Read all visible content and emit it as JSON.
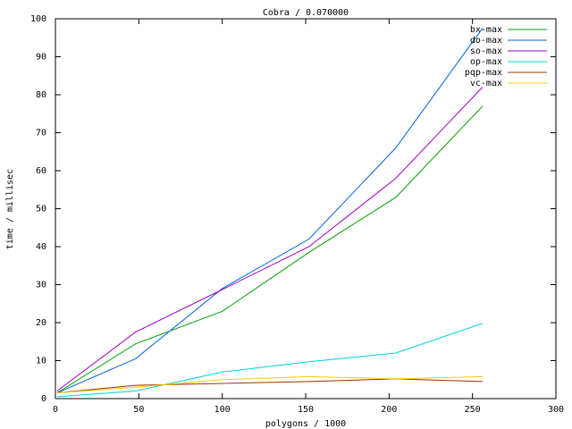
{
  "chart_data": {
    "type": "line",
    "title": "Cobra / 0.070000",
    "x_label": "polygons / 1000",
    "y_label": "time / millisec",
    "x": [
      1,
      48,
      100,
      152,
      204,
      256
    ],
    "series": [
      {
        "name": "bx-max",
        "color": "#00a000",
        "values": [
          1.5,
          14.4,
          23,
          38.5,
          53,
          77
        ]
      },
      {
        "name": "do-max",
        "color": "#0060e0",
        "values": [
          1.5,
          10.5,
          29,
          42,
          66,
          97.5
        ]
      },
      {
        "name": "so-max",
        "color": "#a000c0",
        "values": [
          2,
          17.5,
          28.7,
          40,
          58,
          82
        ]
      },
      {
        "name": "op-max",
        "color": "#00d0e0",
        "values": [
          0.5,
          2,
          7,
          9.7,
          12,
          19.8
        ]
      },
      {
        "name": "pqp-max",
        "color": "#a03000",
        "values": [
          1.5,
          3.5,
          4,
          4.5,
          5.2,
          4.5
        ]
      },
      {
        "name": "vc-max",
        "color": "#f0d000",
        "values": [
          1.5,
          3,
          5,
          5.8,
          5.2,
          5.8
        ]
      }
    ],
    "xlim": [
      0,
      300
    ],
    "xticks": [
      0,
      50,
      100,
      150,
      200,
      250,
      300
    ],
    "ylim": [
      0,
      100
    ],
    "yticks": [
      0,
      10,
      20,
      30,
      40,
      50,
      60,
      70,
      80,
      90,
      100
    ],
    "grid": false,
    "legend": "top-right"
  }
}
